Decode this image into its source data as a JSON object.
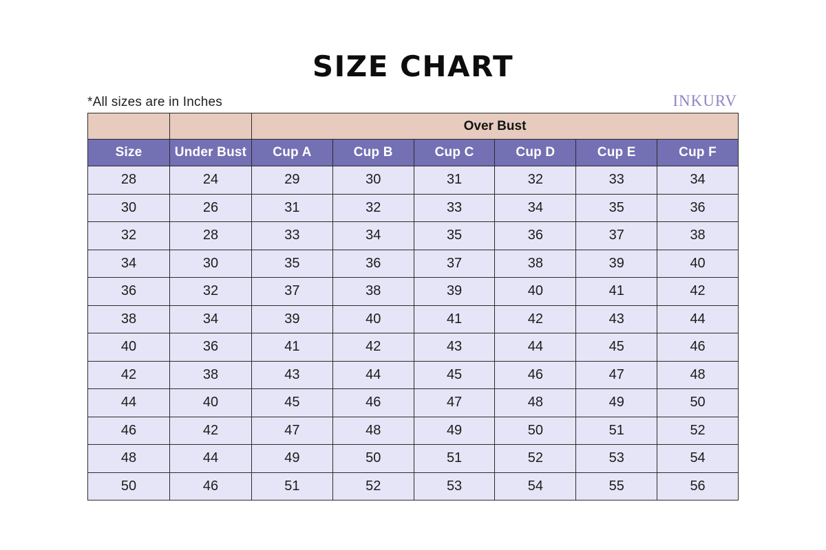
{
  "page": {
    "title": "SIZE CHART",
    "note": "*All sizes are in Inches",
    "brand": "INKURV"
  },
  "colors": {
    "group_header_bg": "#e7cbbe",
    "column_header_bg": "#7470b4",
    "column_header_text": "#ffffff",
    "cell_bg": "#e6e5f7",
    "border": "#2a2a2a",
    "brand_text": "#8e85c7",
    "title_text": "#0d0d0d"
  },
  "table": {
    "group_header": "Over Bust",
    "columns": [
      "Size",
      "Under Bust",
      "Cup A",
      "Cup B",
      "Cup C",
      "Cup D",
      "Cup E",
      "Cup F"
    ],
    "rows": [
      [
        28,
        24,
        29,
        30,
        31,
        32,
        33,
        34
      ],
      [
        30,
        26,
        31,
        32,
        33,
        34,
        35,
        36
      ],
      [
        32,
        28,
        33,
        34,
        35,
        36,
        37,
        38
      ],
      [
        34,
        30,
        35,
        36,
        37,
        38,
        39,
        40
      ],
      [
        36,
        32,
        37,
        38,
        39,
        40,
        41,
        42
      ],
      [
        38,
        34,
        39,
        40,
        41,
        42,
        43,
        44
      ],
      [
        40,
        36,
        41,
        42,
        43,
        44,
        45,
        46
      ],
      [
        42,
        38,
        43,
        44,
        45,
        46,
        47,
        48
      ],
      [
        44,
        40,
        45,
        46,
        47,
        48,
        49,
        50
      ],
      [
        46,
        42,
        47,
        48,
        49,
        50,
        51,
        52
      ],
      [
        48,
        44,
        49,
        50,
        51,
        52,
        53,
        54
      ],
      [
        50,
        46,
        51,
        52,
        53,
        54,
        55,
        56
      ]
    ]
  },
  "chart_data": {
    "type": "table",
    "title": "SIZE CHART",
    "subtitle": "*All sizes are in Inches",
    "group_header": {
      "label": "Over Bust",
      "spans_columns": [
        "Cup A",
        "Cup B",
        "Cup C",
        "Cup D",
        "Cup E",
        "Cup F"
      ]
    },
    "columns": [
      "Size",
      "Under Bust",
      "Cup A",
      "Cup B",
      "Cup C",
      "Cup D",
      "Cup E",
      "Cup F"
    ],
    "rows": [
      [
        28,
        24,
        29,
        30,
        31,
        32,
        33,
        34
      ],
      [
        30,
        26,
        31,
        32,
        33,
        34,
        35,
        36
      ],
      [
        32,
        28,
        33,
        34,
        35,
        36,
        37,
        38
      ],
      [
        34,
        30,
        35,
        36,
        37,
        38,
        39,
        40
      ],
      [
        36,
        32,
        37,
        38,
        39,
        40,
        41,
        42
      ],
      [
        38,
        34,
        39,
        40,
        41,
        42,
        43,
        44
      ],
      [
        40,
        36,
        41,
        42,
        43,
        44,
        45,
        46
      ],
      [
        42,
        38,
        43,
        44,
        45,
        46,
        47,
        48
      ],
      [
        44,
        40,
        45,
        46,
        47,
        48,
        49,
        50
      ],
      [
        46,
        42,
        47,
        48,
        49,
        50,
        51,
        52
      ],
      [
        48,
        44,
        49,
        50,
        51,
        52,
        53,
        54
      ],
      [
        50,
        46,
        51,
        52,
        53,
        54,
        55,
        56
      ]
    ],
    "units": "inches"
  }
}
